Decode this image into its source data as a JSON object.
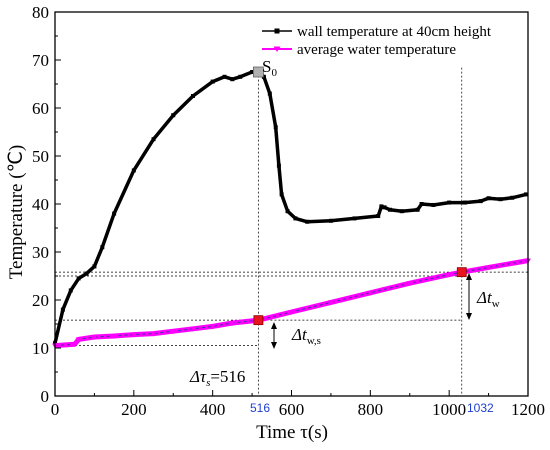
{
  "chart_data": {
    "type": "line",
    "xlabel": "Time τ(s)",
    "ylabel": "Temperature (℃)",
    "xlim": [
      0,
      1200
    ],
    "ylim": [
      0,
      80
    ],
    "x_ticks": [
      0,
      200,
      400,
      600,
      800,
      1000,
      1200
    ],
    "y_ticks": [
      0,
      10,
      20,
      30,
      40,
      50,
      60,
      70,
      80
    ],
    "grid": false,
    "legend_position": "top-right",
    "series": [
      {
        "name": "wall temperature at 40cm height",
        "color": "#000000",
        "marker": "square",
        "x": [
          0,
          20,
          40,
          60,
          80,
          100,
          120,
          150,
          200,
          250,
          300,
          350,
          400,
          430,
          450,
          470,
          500,
          516,
          530,
          545,
          560,
          568,
          575,
          590,
          610,
          640,
          700,
          760,
          820,
          828,
          836,
          850,
          880,
          920,
          930,
          960,
          1000,
          1040,
          1080,
          1100,
          1130,
          1160,
          1195
        ],
        "y": [
          11,
          18,
          22,
          24.5,
          25.5,
          27,
          31,
          38,
          47,
          53.5,
          58.5,
          62.5,
          65.5,
          66.5,
          66,
          66.5,
          67.5,
          67.5,
          66.5,
          63,
          56,
          48,
          42,
          38.5,
          37,
          36.3,
          36.5,
          37,
          37.5,
          39.5,
          39.3,
          38.8,
          38.5,
          38.8,
          40,
          39.8,
          40.3,
          40.3,
          40.6,
          41.2,
          41,
          41.3,
          42
        ]
      },
      {
        "name": "average water temperature",
        "color": "#ff00ff",
        "marker": "triangle-down",
        "x": [
          0,
          50,
          60,
          100,
          150,
          200,
          250,
          300,
          350,
          400,
          450,
          516,
          600,
          700,
          800,
          900,
          1000,
          1032,
          1100,
          1200
        ],
        "y": [
          10.5,
          10.8,
          11.8,
          12.3,
          12.5,
          12.8,
          13,
          13.5,
          14,
          14.5,
          15.2,
          15.8,
          17.5,
          19.5,
          21.5,
          23.5,
          25.3,
          25.8,
          26.8,
          28.2
        ]
      }
    ],
    "start_point_label": "S",
    "start_point_subscript": "0",
    "marked_points": [
      {
        "series": "average water temperature",
        "x": 516,
        "y": 15.8
      },
      {
        "series": "average water temperature",
        "x": 1032,
        "y": 25.8
      }
    ],
    "annotations": {
      "delta_tau_s": "Δτs=516",
      "delta_tau_s_main": "Δτ",
      "delta_tau_s_sub": "s",
      "delta_tau_s_value": "=516",
      "delta_tw_s_main": "Δt",
      "delta_tw_s_sub": "w,s",
      "delta_tw_main": "Δt",
      "delta_tw_sub": "w",
      "x_mark_516": "516",
      "x_mark_1032": "1032"
    },
    "reference_lines": {
      "horizontal": [
        10.5,
        15.8,
        25,
        25.8
      ],
      "vertical": [
        516,
        1032
      ]
    }
  }
}
